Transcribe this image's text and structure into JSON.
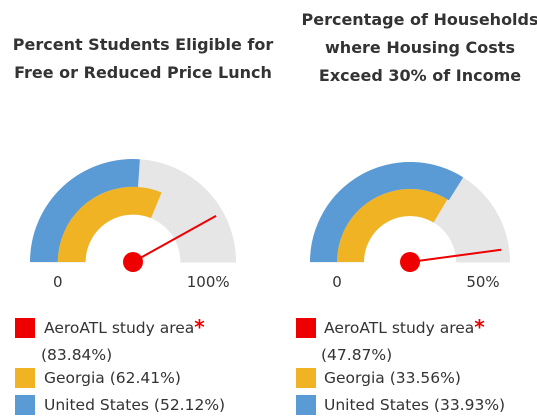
{
  "chart_data": [
    {
      "type": "gauge",
      "title": "Percent Students Eligible for Free or Reduced Price Lunch",
      "ylim": [
        0,
        100
      ],
      "yticks": [
        0,
        {
          "value": 100,
          "label": "100%"
        }
      ],
      "background": "#e6e6e6",
      "series": [
        {
          "name": "AeroATL study area",
          "note": "*",
          "color": "#ee0000",
          "style": "needle",
          "values": [
            83.84
          ],
          "value_labels": [
            "(83.84%)"
          ]
        },
        {
          "name": "Georgia",
          "color": "#f0b323",
          "style": "inner-arc",
          "values": [
            62.41
          ],
          "value_labels": [
            "(62.41%)"
          ]
        },
        {
          "name": "United States",
          "color": "#5b9bd5",
          "style": "outer-arc",
          "values": [
            52.12
          ],
          "value_labels": [
            "(52.12%)"
          ]
        }
      ]
    },
    {
      "type": "gauge",
      "title": "Percentage of Households where Housing Costs Exceed 30% of Income",
      "ylim": [
        0,
        50
      ],
      "yticks": [
        0,
        {
          "value": 50,
          "label": "50%"
        }
      ],
      "background": "#e6e6e6",
      "series": [
        {
          "name": "AeroATL study area",
          "note": "*",
          "color": "#ee0000",
          "style": "needle",
          "values": [
            47.87
          ],
          "value_labels": [
            "(47.87%)"
          ]
        },
        {
          "name": "Georgia",
          "color": "#f0b323",
          "style": "inner-arc",
          "values": [
            33.56
          ],
          "value_labels": [
            "(33.56%)"
          ]
        },
        {
          "name": "United States",
          "color": "#5b9bd5",
          "style": "outer-arc",
          "values": [
            33.93
          ],
          "value_labels": [
            "(33.93%)"
          ]
        }
      ]
    }
  ]
}
